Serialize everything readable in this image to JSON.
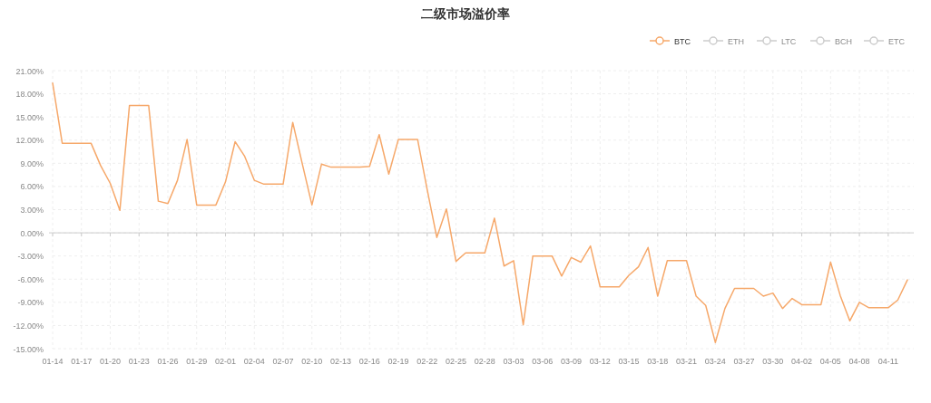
{
  "chart_data": {
    "type": "line",
    "title": "二级市场溢价率",
    "categories": [
      "01-14",
      null,
      null,
      "01-17",
      null,
      null,
      "01-20",
      null,
      null,
      "01-23",
      null,
      null,
      "01-26",
      null,
      null,
      "01-29",
      null,
      null,
      "02-01",
      null,
      null,
      "02-04",
      null,
      null,
      "02-07",
      null,
      null,
      "02-10",
      null,
      null,
      "02-13",
      null,
      null,
      "02-16",
      null,
      null,
      "02-19",
      null,
      null,
      "02-22",
      null,
      null,
      "02-25",
      null,
      null,
      "02-28",
      null,
      null,
      "03-03",
      null,
      null,
      "03-06",
      null,
      null,
      "03-09",
      null,
      null,
      "03-12",
      null,
      null,
      "03-15",
      null,
      null,
      "03-18",
      null,
      null,
      "03-21",
      null,
      null,
      "03-24",
      null,
      null,
      "03-27",
      null,
      null,
      "03-30",
      null,
      null,
      "04-02",
      null,
      null,
      "04-05",
      null,
      null,
      "04-08",
      null,
      null,
      "04-11",
      null,
      null
    ],
    "series": [
      {
        "name": "BTC",
        "color": "#f6a86a",
        "values": [
          19.4,
          11.6,
          11.6,
          11.6,
          11.6,
          8.7,
          6.4,
          2.9,
          16.5,
          16.5,
          16.5,
          4.1,
          3.8,
          6.8,
          12.1,
          3.6,
          3.6,
          3.6,
          6.6,
          11.8,
          9.9,
          6.8,
          6.3,
          6.3,
          6.3,
          14.3,
          8.9,
          3.6,
          8.9,
          8.5,
          8.5,
          8.5,
          8.5,
          8.6,
          12.7,
          7.6,
          12.1,
          12.1,
          12.1,
          5.6,
          -0.6,
          3.1,
          -3.7,
          -2.6,
          -2.6,
          -2.6,
          1.9,
          -4.3,
          -3.6,
          -11.9,
          -3.0,
          -3.0,
          -3.0,
          -5.6,
          -3.2,
          -3.8,
          -1.7,
          -7.0,
          -7.0,
          -7.0,
          -5.5,
          -4.4,
          -1.9,
          -8.2,
          -3.6,
          -3.6,
          -3.6,
          -8.2,
          -9.4,
          -14.2,
          -9.8,
          -7.2,
          -7.2,
          -7.2,
          -8.2,
          -7.8,
          -9.8,
          -8.5,
          -9.3,
          -9.3,
          -9.3,
          -3.8,
          -8.1,
          -11.4,
          -9.0,
          -9.7,
          -9.7,
          -9.7,
          -8.7,
          -6.1
        ]
      },
      {
        "name": "ETH",
        "color": "#cccccc",
        "values": [
          null,
          null,
          null,
          null,
          null,
          null,
          null,
          null,
          null,
          null,
          null,
          null,
          null,
          null,
          null,
          null,
          null,
          null,
          null,
          null,
          null,
          null,
          null,
          null,
          null,
          null,
          null,
          null,
          null,
          null,
          null,
          null,
          null,
          null,
          null,
          null,
          null,
          null,
          null,
          null,
          null,
          null,
          null,
          null,
          null,
          null,
          null,
          null,
          null,
          null,
          null,
          null,
          null,
          null,
          null,
          null,
          null,
          null,
          null,
          null,
          null,
          null,
          null,
          null,
          null,
          null,
          null,
          null,
          null,
          null,
          null,
          null,
          null,
          null,
          null,
          null,
          null,
          null,
          null,
          null,
          null,
          null,
          null,
          null,
          null,
          null,
          null,
          null,
          null,
          null
        ]
      },
      {
        "name": "LTC",
        "color": "#cccccc",
        "values": [
          null,
          null,
          null,
          null,
          null,
          null,
          null,
          null,
          null,
          null,
          null,
          null,
          null,
          null,
          null,
          null,
          null,
          null,
          null,
          null,
          null,
          null,
          null,
          null,
          null,
          null,
          null,
          null,
          null,
          null,
          null,
          null,
          null,
          null,
          null,
          null,
          null,
          null,
          null,
          null,
          null,
          null,
          null,
          null,
          null,
          null,
          null,
          null,
          null,
          null,
          null,
          null,
          null,
          null,
          null,
          null,
          null,
          null,
          null,
          null,
          null,
          null,
          null,
          null,
          null,
          null,
          null,
          null,
          null,
          null,
          null,
          null,
          null,
          null,
          null,
          null,
          null,
          null,
          null,
          null,
          null,
          null,
          null,
          null,
          null,
          null,
          null,
          null,
          null,
          null
        ]
      },
      {
        "name": "BCH",
        "color": "#cccccc",
        "values": [
          null,
          null,
          null,
          null,
          null,
          null,
          null,
          null,
          null,
          null,
          null,
          null,
          null,
          null,
          null,
          null,
          null,
          null,
          null,
          null,
          null,
          null,
          null,
          null,
          null,
          null,
          null,
          null,
          null,
          null,
          null,
          null,
          null,
          null,
          null,
          null,
          null,
          null,
          null,
          null,
          null,
          null,
          null,
          null,
          null,
          null,
          null,
          null,
          null,
          null,
          null,
          null,
          null,
          null,
          null,
          null,
          null,
          null,
          null,
          null,
          null,
          null,
          null,
          null,
          null,
          null,
          null,
          null,
          null,
          null,
          null,
          null,
          null,
          null,
          null,
          null,
          null,
          null,
          null,
          null,
          null,
          null,
          null,
          null,
          null,
          null,
          null,
          null,
          null,
          null
        ]
      },
      {
        "name": "ETC",
        "color": "#cccccc",
        "values": [
          null,
          null,
          null,
          null,
          null,
          null,
          null,
          null,
          null,
          null,
          null,
          null,
          null,
          null,
          null,
          null,
          null,
          null,
          null,
          null,
          null,
          null,
          null,
          null,
          null,
          null,
          null,
          null,
          null,
          null,
          null,
          null,
          null,
          null,
          null,
          null,
          null,
          null,
          null,
          null,
          null,
          null,
          null,
          null,
          null,
          null,
          null,
          null,
          null,
          null,
          null,
          null,
          null,
          null,
          null,
          null,
          null,
          null,
          null,
          null,
          null,
          null,
          null,
          null,
          null,
          null,
          null,
          null,
          null,
          null,
          null,
          null,
          null,
          null,
          null,
          null,
          null,
          null,
          null,
          null,
          null,
          null,
          null,
          null,
          null,
          null,
          null,
          null,
          null,
          null
        ]
      }
    ],
    "ylim": [
      -15,
      21
    ],
    "yticks": [
      {
        "value": 21,
        "label": "21.00%"
      },
      {
        "value": 18,
        "label": "18.00%"
      },
      {
        "value": 15,
        "label": "15.00%"
      },
      {
        "value": 12,
        "label": "12.00%"
      },
      {
        "value": 9,
        "label": "9.00%"
      },
      {
        "value": 6,
        "label": "6.00%"
      },
      {
        "value": 3,
        "label": "3.00%"
      },
      {
        "value": 0,
        "label": "0.00%"
      },
      {
        "value": -3,
        "label": "-3.00%"
      },
      {
        "value": -6,
        "label": "-6.00%"
      },
      {
        "value": -9,
        "label": "-9.00%"
      },
      {
        "value": -12,
        "label": "-12.00%"
      },
      {
        "value": -15,
        "label": "-15.00%"
      }
    ],
    "grid": true,
    "legend": "top right"
  }
}
